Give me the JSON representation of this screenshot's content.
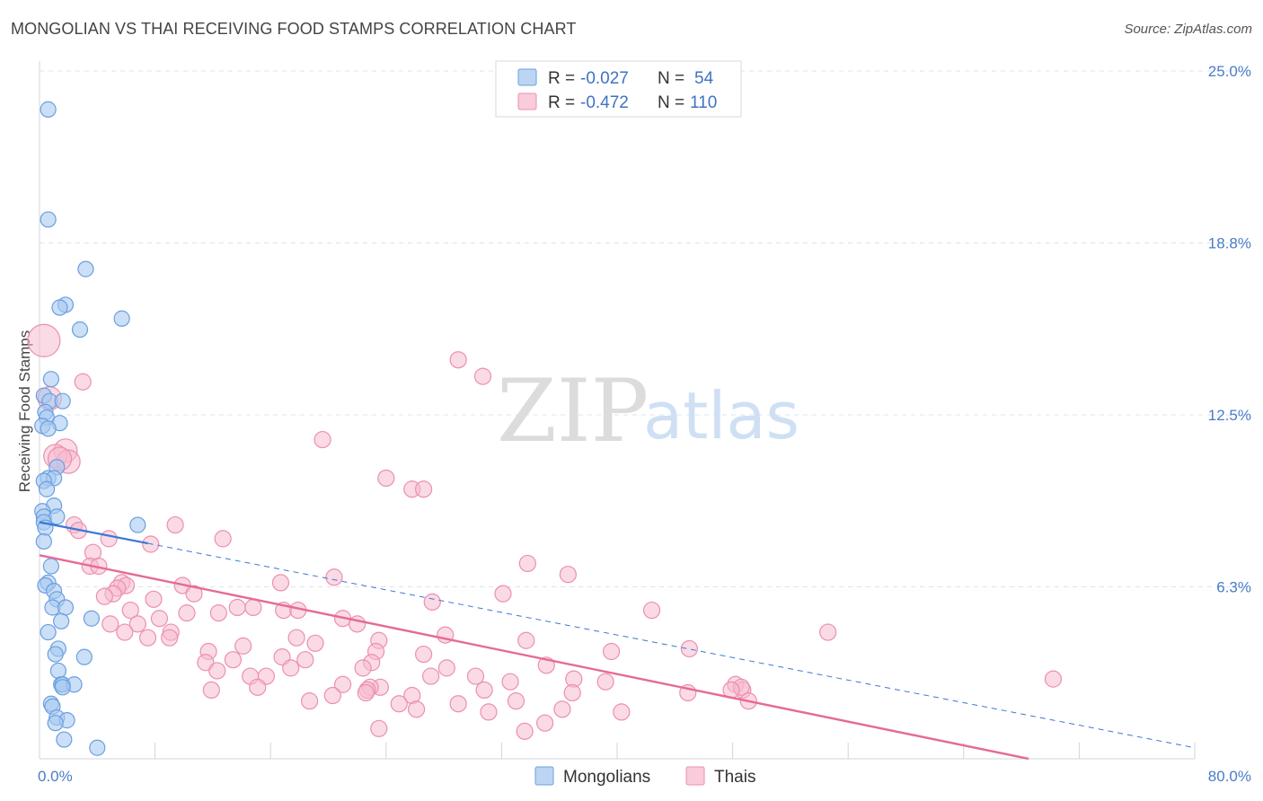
{
  "title": "MONGOLIAN VS THAI RECEIVING FOOD STAMPS CORRELATION CHART",
  "source": "Source: ZipAtlas.com",
  "watermark": {
    "zip": "ZIP",
    "atlas": "atlas"
  },
  "colors": {
    "mongolian_fill": "#a9c9f0",
    "mongolian_stroke": "#6a9fe0",
    "mongolian_line": "#3a78d6",
    "thai_fill": "#f6bccf",
    "thai_stroke": "#ec8fb0",
    "thai_line": "#e56b95",
    "grid": "#dde3ec",
    "axis_text": "#4a7cc7"
  },
  "legend": {
    "mongolian": {
      "r_label": "R = ",
      "r_value": "-0.027",
      "n_label": "N = ",
      "n_value": "54"
    },
    "thai": {
      "r_label": "R = ",
      "r_value": "-0.472",
      "n_label": "N = ",
      "n_value": "110"
    }
  },
  "chart_data": {
    "type": "scatter",
    "title": "MONGOLIAN VS THAI RECEIVING FOOD STAMPS CORRELATION CHART",
    "xlabel": "",
    "ylabel": "Receiving Food Stamps",
    "xlim": [
      0,
      80
    ],
    "ylim": [
      0,
      25
    ],
    "x_tick_labels": [
      "0.0%",
      "80.0%"
    ],
    "y_ticks": [
      6.25,
      12.5,
      18.75,
      25.0
    ],
    "y_tick_labels": [
      "6.3%",
      "12.5%",
      "18.8%",
      "25.0%"
    ],
    "grid": true,
    "legend_position": "bottom-center",
    "series": [
      {
        "name": "Mongolians",
        "r": -0.027,
        "n": 54,
        "trend": {
          "x0": 0,
          "y0": 8.6,
          "x1": 80,
          "y1": 0.4,
          "solid_until": 7.5
        },
        "points": [
          [
            0.6,
            23.6
          ],
          [
            0.6,
            19.6
          ],
          [
            3.2,
            17.8
          ],
          [
            1.8,
            16.5
          ],
          [
            1.4,
            16.4
          ],
          [
            5.7,
            16.0
          ],
          [
            2.8,
            15.6
          ],
          [
            0.8,
            13.8
          ],
          [
            0.3,
            13.2
          ],
          [
            0.7,
            13.0
          ],
          [
            1.6,
            13.0
          ],
          [
            0.4,
            12.6
          ],
          [
            0.5,
            12.4
          ],
          [
            1.4,
            12.2
          ],
          [
            0.2,
            12.1
          ],
          [
            0.6,
            12.0
          ],
          [
            1.2,
            10.6
          ],
          [
            0.6,
            10.2
          ],
          [
            1.0,
            10.2
          ],
          [
            0.3,
            10.1
          ],
          [
            0.5,
            9.8
          ],
          [
            1.0,
            9.2
          ],
          [
            0.2,
            9.0
          ],
          [
            0.3,
            8.8
          ],
          [
            1.2,
            8.8
          ],
          [
            0.3,
            8.6
          ],
          [
            6.8,
            8.5
          ],
          [
            0.4,
            8.4
          ],
          [
            0.3,
            7.9
          ],
          [
            0.8,
            7.0
          ],
          [
            0.6,
            6.4
          ],
          [
            0.4,
            6.3
          ],
          [
            1.0,
            6.1
          ],
          [
            1.2,
            5.8
          ],
          [
            0.9,
            5.5
          ],
          [
            1.8,
            5.5
          ],
          [
            3.6,
            5.1
          ],
          [
            1.5,
            5.0
          ],
          [
            0.6,
            4.6
          ],
          [
            1.3,
            4.0
          ],
          [
            1.1,
            3.8
          ],
          [
            3.1,
            3.7
          ],
          [
            1.3,
            3.2
          ],
          [
            1.5,
            2.7
          ],
          [
            1.6,
            2.7
          ],
          [
            2.4,
            2.7
          ],
          [
            1.6,
            2.6
          ],
          [
            0.8,
            2.0
          ],
          [
            0.9,
            1.9
          ],
          [
            1.2,
            1.5
          ],
          [
            1.9,
            1.4
          ],
          [
            1.1,
            1.3
          ],
          [
            1.7,
            0.7
          ],
          [
            4.0,
            0.4
          ]
        ]
      },
      {
        "name": "Thais",
        "r": -0.472,
        "n": 110,
        "trend": {
          "x0": 0,
          "y0": 7.4,
          "x1": 68.5,
          "y1": 0.0
        },
        "points": [
          [
            0.3,
            15.2
          ],
          [
            3.0,
            13.7
          ],
          [
            0.7,
            13.1
          ],
          [
            1.8,
            11.2
          ],
          [
            1.1,
            11.0
          ],
          [
            2.0,
            10.8
          ],
          [
            1.4,
            10.9
          ],
          [
            29.0,
            14.5
          ],
          [
            30.7,
            13.9
          ],
          [
            19.6,
            11.6
          ],
          [
            24.0,
            10.2
          ],
          [
            25.8,
            9.8
          ],
          [
            26.6,
            9.8
          ],
          [
            9.4,
            8.5
          ],
          [
            2.4,
            8.5
          ],
          [
            2.7,
            8.3
          ],
          [
            4.8,
            8.0
          ],
          [
            7.7,
            7.8
          ],
          [
            12.7,
            8.0
          ],
          [
            3.7,
            7.5
          ],
          [
            3.5,
            7.0
          ],
          [
            4.1,
            7.0
          ],
          [
            33.8,
            7.1
          ],
          [
            36.6,
            6.7
          ],
          [
            20.4,
            6.6
          ],
          [
            16.7,
            6.4
          ],
          [
            9.9,
            6.3
          ],
          [
            5.7,
            6.4
          ],
          [
            6.0,
            6.3
          ],
          [
            5.4,
            6.2
          ],
          [
            5.1,
            6.0
          ],
          [
            10.7,
            6.0
          ],
          [
            4.5,
            5.9
          ],
          [
            32.1,
            6.0
          ],
          [
            7.9,
            5.8
          ],
          [
            27.2,
            5.7
          ],
          [
            14.8,
            5.5
          ],
          [
            13.7,
            5.5
          ],
          [
            16.9,
            5.4
          ],
          [
            17.9,
            5.4
          ],
          [
            6.3,
            5.4
          ],
          [
            10.2,
            5.3
          ],
          [
            12.4,
            5.3
          ],
          [
            42.4,
            5.4
          ],
          [
            8.3,
            5.1
          ],
          [
            21.0,
            5.1
          ],
          [
            22.0,
            4.9
          ],
          [
            6.8,
            4.9
          ],
          [
            4.9,
            4.9
          ],
          [
            5.9,
            4.6
          ],
          [
            9.1,
            4.6
          ],
          [
            54.6,
            4.6
          ],
          [
            28.1,
            4.5
          ],
          [
            7.5,
            4.4
          ],
          [
            9.0,
            4.4
          ],
          [
            17.8,
            4.4
          ],
          [
            33.7,
            4.3
          ],
          [
            23.5,
            4.3
          ],
          [
            19.1,
            4.2
          ],
          [
            14.1,
            4.1
          ],
          [
            45.0,
            4.0
          ],
          [
            23.3,
            3.9
          ],
          [
            11.7,
            3.9
          ],
          [
            39.6,
            3.9
          ],
          [
            26.6,
            3.8
          ],
          [
            16.8,
            3.7
          ],
          [
            13.4,
            3.6
          ],
          [
            18.4,
            3.6
          ],
          [
            23.0,
            3.5
          ],
          [
            11.5,
            3.5
          ],
          [
            17.4,
            3.3
          ],
          [
            28.2,
            3.3
          ],
          [
            22.4,
            3.3
          ],
          [
            35.1,
            3.4
          ],
          [
            12.3,
            3.2
          ],
          [
            14.6,
            3.0
          ],
          [
            27.1,
            3.0
          ],
          [
            15.7,
            3.0
          ],
          [
            30.2,
            3.0
          ],
          [
            37.0,
            2.9
          ],
          [
            32.6,
            2.8
          ],
          [
            70.2,
            2.9
          ],
          [
            39.2,
            2.8
          ],
          [
            21.0,
            2.7
          ],
          [
            23.6,
            2.6
          ],
          [
            48.2,
            2.7
          ],
          [
            22.9,
            2.6
          ],
          [
            48.7,
            2.5
          ],
          [
            48.6,
            2.6
          ],
          [
            15.1,
            2.6
          ],
          [
            30.8,
            2.5
          ],
          [
            22.7,
            2.5
          ],
          [
            11.9,
            2.5
          ],
          [
            25.8,
            2.3
          ],
          [
            36.9,
            2.4
          ],
          [
            44.9,
            2.4
          ],
          [
            47.9,
            2.5
          ],
          [
            22.6,
            2.4
          ],
          [
            20.3,
            2.3
          ],
          [
            33.0,
            2.1
          ],
          [
            18.7,
            2.1
          ],
          [
            24.9,
            2.0
          ],
          [
            29.0,
            2.0
          ],
          [
            49.1,
            2.1
          ],
          [
            26.1,
            1.8
          ],
          [
            36.2,
            1.8
          ],
          [
            31.1,
            1.7
          ],
          [
            40.3,
            1.7
          ],
          [
            35.0,
            1.3
          ],
          [
            23.5,
            1.1
          ],
          [
            33.6,
            1.0
          ]
        ]
      }
    ]
  },
  "bottom_legend": {
    "mongolians": "Mongolians",
    "thais": "Thais"
  }
}
